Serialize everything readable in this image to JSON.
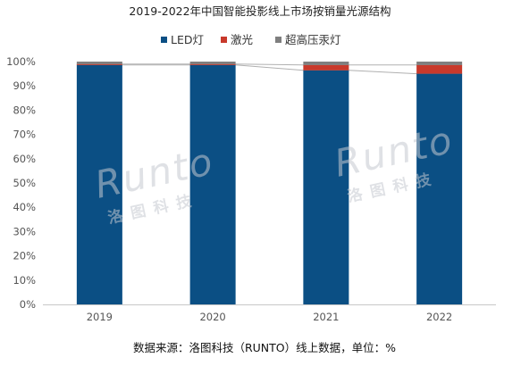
{
  "chart_data": {
    "type": "bar",
    "stacked": true,
    "title": "2019-2022年中国智能投影线上市场按销量光源结构",
    "categories": [
      "2019",
      "2020",
      "2021",
      "2022"
    ],
    "series": [
      {
        "name": "LED灯",
        "color": "#0b4f84",
        "values": [
          98.6,
          98.6,
          96.4,
          95.0
        ]
      },
      {
        "name": "激光",
        "color": "#c8392b",
        "values": [
          0.4,
          0.4,
          2.2,
          3.6
        ]
      },
      {
        "name": "超高压汞灯",
        "color": "#7f7f7f",
        "values": [
          1.0,
          1.0,
          1.4,
          1.4
        ]
      }
    ],
    "y_ticks": [
      "0%",
      "10%",
      "20%",
      "30%",
      "40%",
      "50%",
      "60%",
      "70%",
      "80%",
      "90%",
      "100%"
    ],
    "ylim": [
      0,
      100
    ],
    "legend_position": "top",
    "grid": false,
    "series_lines": true,
    "source": "数据来源：洛图科技（RUNTO）线上数据，单位：%",
    "watermark": {
      "latin": "Runto",
      "chinese": "洛图科技"
    }
  }
}
